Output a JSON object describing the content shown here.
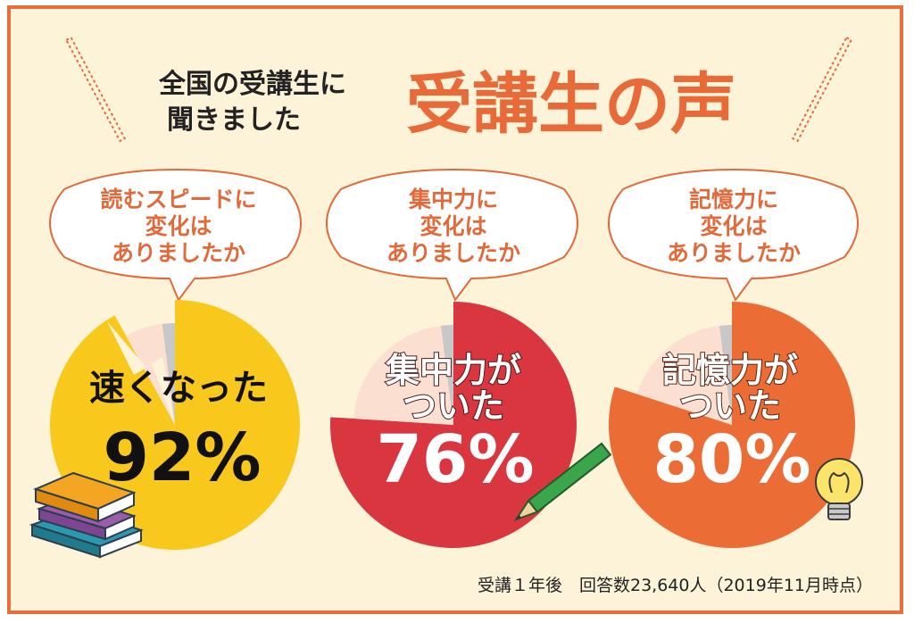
{
  "header": {
    "subtitle_line1": "全国の受講生に",
    "subtitle_line2": "聞きました",
    "title": "受講生の声"
  },
  "chart_data": [
    {
      "type": "pie",
      "question": [
        "読むスピードに",
        "変化は",
        "ありましたか"
      ],
      "label": "速くなった",
      "value_text": "92%",
      "values": [
        92,
        6,
        2
      ],
      "colors": [
        "#f8c81c",
        "#fbe0d2",
        "#c8c8c8"
      ]
    },
    {
      "type": "pie",
      "question": [
        "集中力に",
        "変化は",
        "ありましたか"
      ],
      "label": [
        "集中力が",
        "ついた"
      ],
      "value_text": "76%",
      "values": [
        76,
        22,
        2
      ],
      "colors": [
        "#da3640",
        "#fbe0d2",
        "#c8c8c8"
      ]
    },
    {
      "type": "pie",
      "question": [
        "記憶力に",
        "変化は",
        "ありましたか"
      ],
      "label": [
        "記憶力が",
        "ついた"
      ],
      "value_text": "80%",
      "values": [
        80,
        18,
        2
      ],
      "colors": [
        "#ec6c36",
        "#fbe0d2",
        "#c8c8c8"
      ]
    }
  ],
  "footer": "受講１年後　回答数23,640人（2019年11月時点）"
}
